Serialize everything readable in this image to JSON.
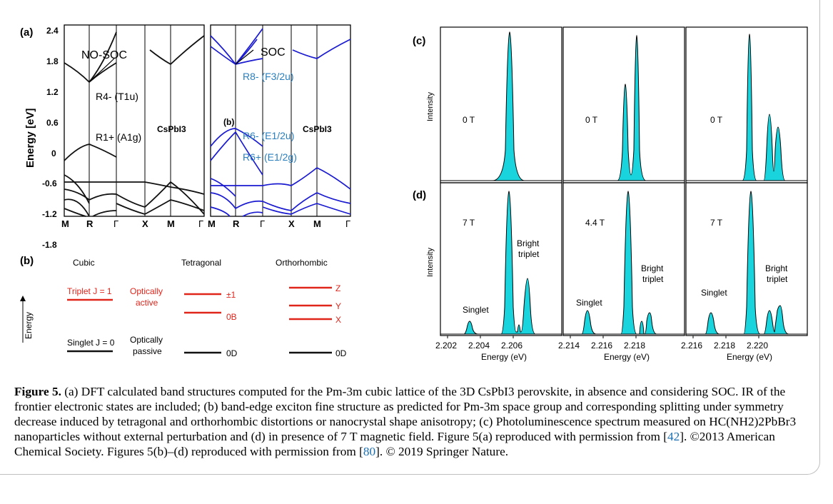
{
  "panel_a": {
    "label": "(a)",
    "y_label": "Energy [eV]",
    "y_ticks": [
      "2.4",
      "1.8",
      "1.2",
      "0.6",
      "0",
      "-0.6",
      "-1.2",
      "-1.8"
    ],
    "x_ticks": [
      "M",
      "R",
      "Γ",
      "X",
      "M",
      "Γ"
    ],
    "left_title": "NO-SOC",
    "right_title": "SOC",
    "compound_left": "CsPbI3",
    "compound_right": "CsPbI3",
    "inner_label": "(b)",
    "states_left": [
      "R4- (T1u)",
      "R1+ (A1g)"
    ],
    "states_right": [
      "R8- (F3/2u)",
      "R6- (E1/2u)",
      "R6+ (E1/2g)"
    ]
  },
  "panel_b": {
    "label": "(b)",
    "col_cubic": "Cubic",
    "col_tetragonal": "Tetragonal",
    "col_orthorhombic": "Orthorhombic",
    "energy_axis": "Energy",
    "triplet": "Triplet J = 1",
    "singlet": "Singlet J = 0",
    "optically_active": [
      "Optically",
      "active"
    ],
    "optically_passive": [
      "Optically",
      "passive"
    ],
    "tetragonal_levels": [
      "±1",
      "0B",
      "0D"
    ],
    "orthorhombic_levels": [
      "Z",
      "Y",
      "X",
      "0D"
    ]
  },
  "panel_cd": {
    "label_c": "(c)",
    "label_d": "(d)",
    "y_label": "Intensity",
    "x_label": "Energy (eV)",
    "fields_c": [
      "0 T",
      "0 T",
      "0 T"
    ],
    "fields_d": [
      "7 T",
      "4.4 T",
      "7 T"
    ],
    "singlet": "Singlet",
    "bright_triplet": [
      "Bright",
      "triplet"
    ],
    "x_ticks": [
      [
        "2.202",
        "2.204",
        "2.206"
      ],
      [
        "2.214",
        "2.216",
        "2.218"
      ],
      [
        "2.216",
        "2.218",
        "2.220"
      ]
    ]
  },
  "colors": {
    "band_no_soc": "#111111",
    "band_soc": "#1a1ad0",
    "state_label_soc": "#2a7fbf",
    "level_red": "#e0251b",
    "peak_fill": "#19d3dd"
  },
  "caption": {
    "figure_label": "Figure 5.",
    "text": " (a) DFT calculated band structures computed for the Pm-3m cubic lattice of the 3D CsPbI3 perovskite, in absence and considering SOC. IR of the frontier electronic states are included; (b) band-edge exciton fine structure as predicted for Pm-3m space group and corresponding splitting under symmetry decrease induced by tetragonal and orthorhombic distortions or nanocrystal shape anisotropy; (c) Photoluminescence spectrum measured on HC(NH2)2PbBr3 nanoparticles without external perturbation and (d) in presence of 7 T magnetic field. Figure 5(a) reproduced with permission from [",
    "ref1": "42",
    "text2": "]. ©2013 American Chemical Society. Figures 5(b)–(d) reproduced with permission from [",
    "ref2": "80",
    "text3": "]. © 2019 Springer Nature."
  }
}
